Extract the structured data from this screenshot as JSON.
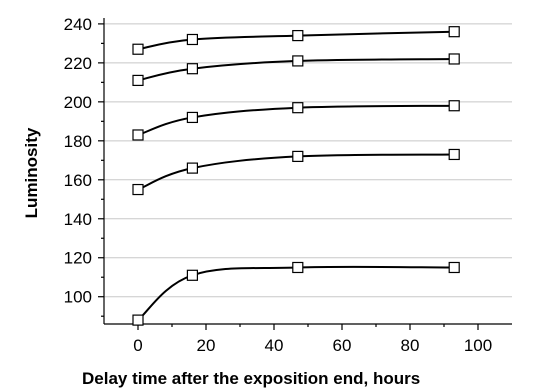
{
  "chart_data": {
    "type": "line",
    "xlabel": "Delay time after the exposition end, hours",
    "ylabel": "Luminosity",
    "xlim": [
      -10,
      110
    ],
    "ylim": [
      86,
      242
    ],
    "x_ticks": [
      0,
      20,
      40,
      60,
      80,
      100
    ],
    "y_ticks": [
      100,
      120,
      140,
      160,
      180,
      200,
      220,
      240
    ],
    "grid": "horizontal",
    "legend": "none",
    "marker": "open-square",
    "x": [
      0,
      16,
      47,
      93
    ],
    "series": [
      {
        "values": [
          227,
          232,
          234,
          236
        ]
      },
      {
        "values": [
          211,
          217,
          221,
          222
        ]
      },
      {
        "values": [
          183,
          192,
          197,
          198
        ]
      },
      {
        "values": [
          155,
          166,
          172,
          173
        ]
      },
      {
        "values": [
          88,
          111,
          115,
          115
        ]
      }
    ]
  }
}
